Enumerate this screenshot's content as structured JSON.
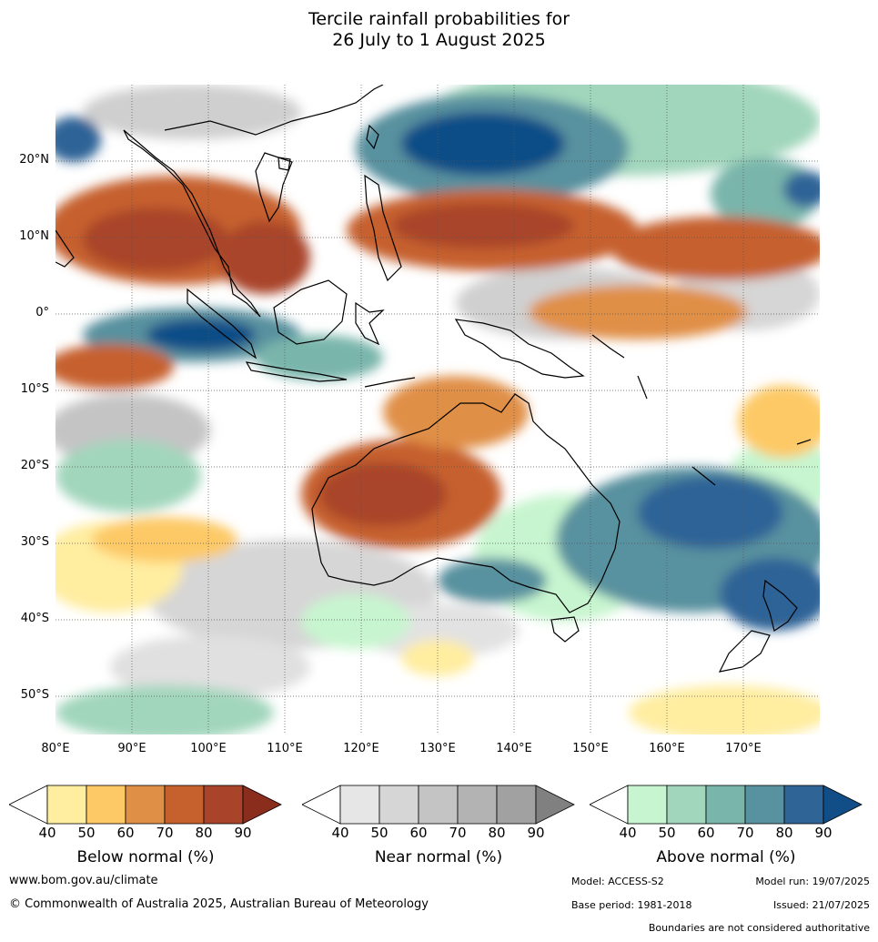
{
  "title_line1": "Tercile rainfall probabilities for",
  "title_line2": "26 July to 1 August 2025",
  "lat_ticks": [
    "20°N",
    "10°N",
    "0°",
    "10°S",
    "20°S",
    "30°S",
    "40°S",
    "50°S"
  ],
  "lon_ticks": [
    "80°E",
    "90°E",
    "100°E",
    "110°E",
    "120°E",
    "130°E",
    "140°E",
    "150°E",
    "160°E",
    "170°E"
  ],
  "legend": {
    "below": {
      "label": "Below normal (%)",
      "ticks": [
        "40",
        "50",
        "60",
        "70",
        "80",
        "90"
      ],
      "colors": [
        "#ffeda0",
        "#fdc966",
        "#e08f47",
        "#c6612e",
        "#a9442a",
        "#8b2d1c"
      ]
    },
    "near": {
      "label": "Near normal (%)",
      "ticks": [
        "40",
        "50",
        "60",
        "70",
        "80",
        "90"
      ],
      "colors": [
        "#e6e6e6",
        "#d6d6d6",
        "#c4c4c4",
        "#b3b3b3",
        "#a1a1a1",
        "#808080"
      ]
    },
    "above": {
      "label": "Above normal (%)",
      "ticks": [
        "40",
        "50",
        "60",
        "70",
        "80",
        "90"
      ],
      "colors": [
        "#c7f5cf",
        "#a1d6bc",
        "#79b5ab",
        "#58919f",
        "#2f6497",
        "#114d87"
      ]
    }
  },
  "footer": {
    "url": "www.bom.gov.au/climate",
    "copyright": "© Commonwealth of Australia 2025, Australian Bureau of Meteorology",
    "model": "Model: ACCESS-S2",
    "model_run": "Model run: 19/07/2025",
    "base_period": "Base period: 1981-2018",
    "issued": "Issued: 21/07/2025",
    "boundaries": "Boundaries are not considered authoritative"
  }
}
